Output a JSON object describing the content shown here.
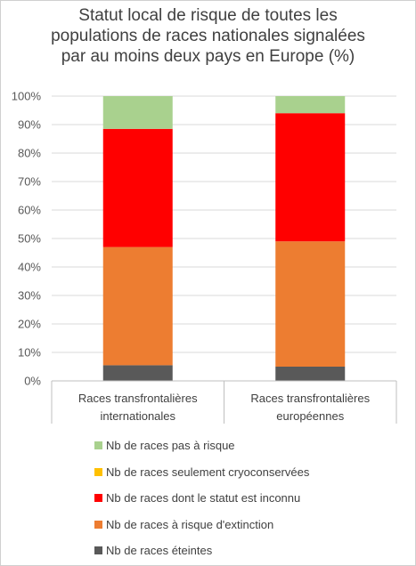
{
  "chart_data": {
    "type": "bar",
    "stacked": true,
    "title_lines": [
      "Statut local de risque de toutes les",
      "populations de races nationales signalées",
      "par au moins deux pays en Europe (%)"
    ],
    "categories": [
      [
        "Races transfrontalières",
        "internationales"
      ],
      [
        "Races transfrontalières",
        "européennes"
      ]
    ],
    "ylim": [
      0,
      100
    ],
    "yticks": [
      "0%",
      "10%",
      "20%",
      "30%",
      "40%",
      "50%",
      "60%",
      "70%",
      "80%",
      "90%",
      "100%"
    ],
    "grid": true,
    "legend_position": "bottom",
    "series": [
      {
        "name": "Nb de races éteintes",
        "color": "#595959",
        "values": [
          5.5,
          5
        ]
      },
      {
        "name": "Nb de races à risque d'extinction",
        "color": "#ed7d31",
        "values": [
          41.5,
          44
        ]
      },
      {
        "name": "Nb de races dont le statut est inconnu",
        "color": "#ff0000",
        "values": [
          41.5,
          45
        ]
      },
      {
        "name": "Nb de races seulement cryoconservées",
        "color": "#ffc000",
        "values": [
          0,
          0
        ]
      },
      {
        "name": "Nb de races pas à risque",
        "color": "#a9d18e",
        "values": [
          11.5,
          6
        ]
      }
    ]
  }
}
